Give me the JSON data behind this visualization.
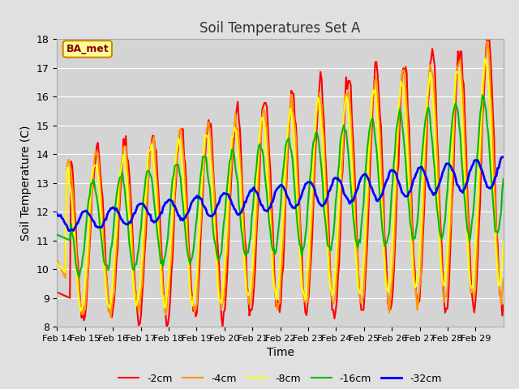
{
  "title": "Soil Temperatures Set A",
  "xlabel": "Time",
  "ylabel": "Soil Temperature (C)",
  "ylim": [
    8.0,
    18.0
  ],
  "yticks": [
    8.0,
    9.0,
    10.0,
    11.0,
    12.0,
    13.0,
    14.0,
    15.0,
    16.0,
    17.0,
    18.0
  ],
  "xtick_labels": [
    "Feb 14",
    "Feb 15",
    "Feb 16",
    "Feb 17",
    "Feb 18",
    "Feb 19",
    "Feb 20",
    "Feb 21",
    "Feb 22",
    "Feb 23",
    "Feb 24",
    "Feb 25",
    "Feb 26",
    "Feb 27",
    "Feb 28",
    "Feb 29"
  ],
  "legend_labels": [
    "-2cm",
    "-4cm",
    "-8cm",
    "-16cm",
    "-32cm"
  ],
  "line_colors": [
    "#ff0000",
    "#ff9900",
    "#ffff00",
    "#00bb00",
    "#0000ff"
  ],
  "line_widths": [
    1.5,
    1.5,
    1.5,
    1.5,
    2.0
  ],
  "annotation_text": "BA_met",
  "annotation_bg": "#ffff99",
  "annotation_border": "#cc8800",
  "fig_bg_color": "#e0e0e0",
  "plot_bg_color": "#d4d4d4",
  "grid_color": "#ffffff",
  "title_color": "#333333",
  "title_fontsize": 12,
  "axis_label_fontsize": 10,
  "tick_fontsize": 9,
  "legend_fontsize": 9
}
